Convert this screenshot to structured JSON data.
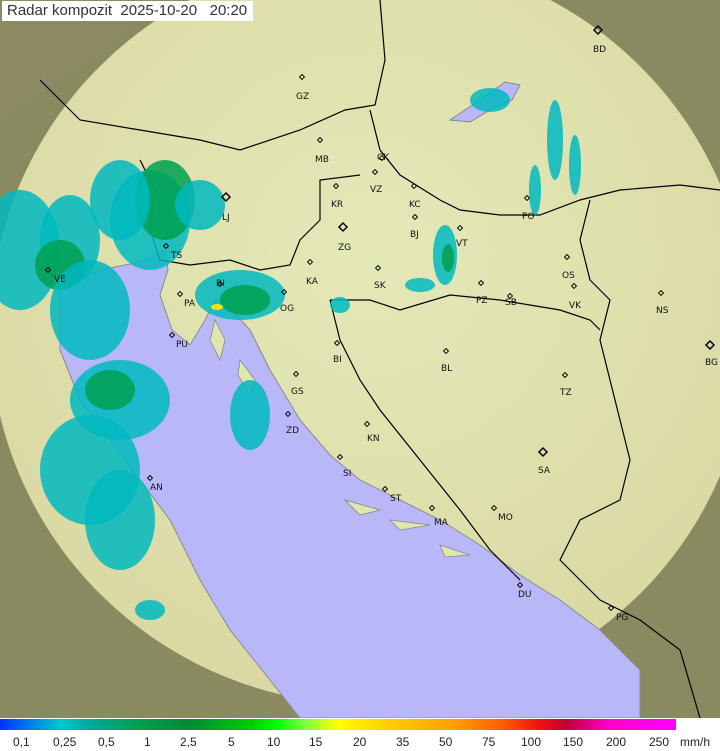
{
  "title": "Radar kompozit  2025-10-20   20:20",
  "legend": {
    "labels": [
      "0,1",
      "0,25",
      "0,5",
      "1",
      "2,5",
      "5",
      "10",
      "15",
      "20",
      "35",
      "50",
      "75",
      "100",
      "150",
      "200",
      "250"
    ],
    "unit": "mm/h"
  },
  "colors": {
    "sea": "#b8b8f8",
    "land": "#dfe6b0",
    "light_rain": "#00b8c0",
    "moderate_rain": "#00a050",
    "heavy_rain": "#ffe000"
  },
  "cities": [
    "GZ",
    "BD",
    "MB",
    "CK",
    "VZ",
    "KR",
    "KC",
    "LJ",
    "ZG",
    "BJ",
    "VT",
    "PO",
    "TS",
    "VE",
    "RI",
    "KA",
    "SK",
    "OS",
    "PA",
    "OG",
    "PZ",
    "SB",
    "VK",
    "NS",
    "PU",
    "BI",
    "BL",
    "BG",
    "GS",
    "TZ",
    "ZD",
    "KN",
    "SA",
    "AN",
    "SI",
    "ST",
    "MA",
    "MO",
    "DU",
    "PG"
  ]
}
